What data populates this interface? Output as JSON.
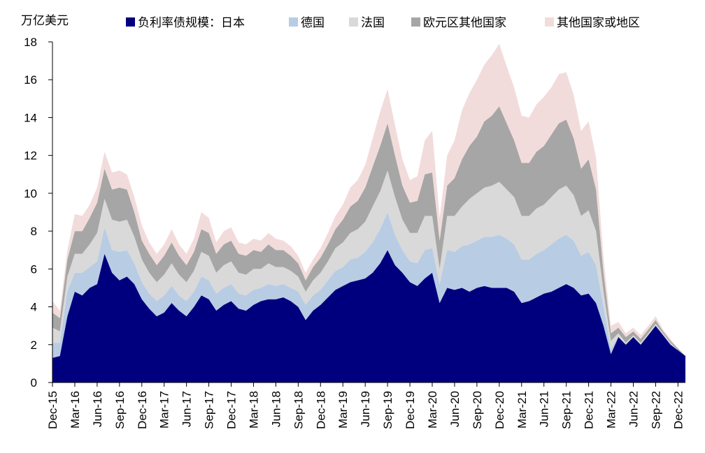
{
  "chart_data": {
    "type": "area",
    "stacked": true,
    "unit_label": "万亿美元",
    "ylim": [
      0,
      18
    ],
    "y_ticks": [
      "0",
      "2",
      "4",
      "6",
      "8",
      "10",
      "12",
      "14",
      "16",
      "18"
    ],
    "x_tick_labels": [
      "Dec-15",
      "Mar-16",
      "Jun-16",
      "Sep-16",
      "Dec-16",
      "Mar-17",
      "Jun-17",
      "Sep-17",
      "Dec-17",
      "Mar-18",
      "Jun-18",
      "Sep-18",
      "Dec-18",
      "Mar-19",
      "Jun-19",
      "Sep-19",
      "Dec-19",
      "Mar-20",
      "Jun-20",
      "Sep-20",
      "Dec-20",
      "Mar-21",
      "Jun-21",
      "Sep-21",
      "Dec-21",
      "Mar-22",
      "Jun-22",
      "Sep-22",
      "Dec-22"
    ],
    "legend_position": "top",
    "grid": false,
    "x": [
      "Dec-15",
      "Jan-16",
      "Feb-16",
      "Mar-16",
      "Apr-16",
      "May-16",
      "Jun-16",
      "Jul-16",
      "Aug-16",
      "Sep-16",
      "Oct-16",
      "Nov-16",
      "Dec-16",
      "Jan-17",
      "Feb-17",
      "Mar-17",
      "Apr-17",
      "May-17",
      "Jun-17",
      "Jul-17",
      "Aug-17",
      "Sep-17",
      "Oct-17",
      "Nov-17",
      "Dec-17",
      "Jan-18",
      "Feb-18",
      "Mar-18",
      "Apr-18",
      "May-18",
      "Jun-18",
      "Jul-18",
      "Aug-18",
      "Sep-18",
      "Oct-18",
      "Nov-18",
      "Dec-18",
      "Jan-19",
      "Feb-19",
      "Mar-19",
      "Apr-19",
      "May-19",
      "Jun-19",
      "Jul-19",
      "Aug-19",
      "Sep-19",
      "Oct-19",
      "Nov-19",
      "Dec-19",
      "Jan-20",
      "Feb-20",
      "Mar-20",
      "Apr-20",
      "May-20",
      "Jun-20",
      "Jul-20",
      "Aug-20",
      "Sep-20",
      "Oct-20",
      "Nov-20",
      "Dec-20",
      "Jan-21",
      "Feb-21",
      "Mar-21",
      "Apr-21",
      "May-21",
      "Jun-21",
      "Jul-21",
      "Aug-21",
      "Sep-21",
      "Oct-21",
      "Nov-21",
      "Dec-21",
      "Jan-22",
      "Feb-22",
      "Mar-22",
      "Apr-22",
      "May-22",
      "Jun-22",
      "Jul-22",
      "Aug-22",
      "Sep-22",
      "Oct-22",
      "Nov-22",
      "Dec-22",
      "Jan-23"
    ],
    "series": [
      {
        "name": "负利率债规模：日本",
        "color": "#00007F",
        "values": [
          1.3,
          1.4,
          3.5,
          4.8,
          4.6,
          5.0,
          5.2,
          6.8,
          5.8,
          5.4,
          5.6,
          5.2,
          4.4,
          3.9,
          3.5,
          3.7,
          4.2,
          3.8,
          3.5,
          4.0,
          4.6,
          4.4,
          3.8,
          4.1,
          4.3,
          3.9,
          3.8,
          4.1,
          4.3,
          4.4,
          4.4,
          4.5,
          4.3,
          4.0,
          3.3,
          3.8,
          4.1,
          4.5,
          4.9,
          5.1,
          5.3,
          5.4,
          5.5,
          5.8,
          6.3,
          7.0,
          6.2,
          5.8,
          5.3,
          5.1,
          5.5,
          5.8,
          4.2,
          5.0,
          4.9,
          5.0,
          4.8,
          5.0,
          5.1,
          5.0,
          5.0,
          5.0,
          4.8,
          4.2,
          4.3,
          4.5,
          4.7,
          4.8,
          5.0,
          5.2,
          5.0,
          4.6,
          4.7,
          4.2,
          3.0,
          1.5,
          2.4,
          2.0,
          2.4,
          2.0,
          2.5,
          3.0,
          2.5,
          2.0,
          1.7,
          1.4
        ],
        "labels_vals": null
      },
      {
        "name": "德国",
        "color": "#B8CCE4",
        "values": [
          0.8,
          0.7,
          1.3,
          1.0,
          1.2,
          1.1,
          1.2,
          1.4,
          1.2,
          1.5,
          1.4,
          1.1,
          0.9,
          0.8,
          0.8,
          0.9,
          0.9,
          0.8,
          0.8,
          0.8,
          1.0,
          1.0,
          0.9,
          0.9,
          0.9,
          0.8,
          0.8,
          0.8,
          0.7,
          0.8,
          0.7,
          0.7,
          0.7,
          0.8,
          0.8,
          0.8,
          0.8,
          0.9,
          1.0,
          1.0,
          1.2,
          1.2,
          1.4,
          1.6,
          1.8,
          2.0,
          1.6,
          1.2,
          1.1,
          1.2,
          1.5,
          1.3,
          1.0,
          2.0,
          2.0,
          2.2,
          2.5,
          2.5,
          2.6,
          2.7,
          2.8,
          2.6,
          2.5,
          2.3,
          2.2,
          2.3,
          2.3,
          2.5,
          2.6,
          2.6,
          2.5,
          2.1,
          2.2,
          2.0,
          1.0,
          0.3,
          0.0,
          0.0,
          0.0,
          0.0,
          0.0,
          0.0,
          0.0,
          0.0,
          0.0,
          0.0
        ],
        "labels_vals": null
      },
      {
        "name": "法国",
        "color": "#D9D9D9",
        "values": [
          0.8,
          0.6,
          0.8,
          1.0,
          1.0,
          1.2,
          1.5,
          1.5,
          1.6,
          1.6,
          1.6,
          1.4,
          1.2,
          1.1,
          1.0,
          1.1,
          1.2,
          1.1,
          1.0,
          1.1,
          1.3,
          1.3,
          1.1,
          1.2,
          1.2,
          1.1,
          1.1,
          1.1,
          1.0,
          1.1,
          1.0,
          0.9,
          0.9,
          0.8,
          0.7,
          0.8,
          0.9,
          1.0,
          1.2,
          1.3,
          1.4,
          1.5,
          1.6,
          1.9,
          2.0,
          2.2,
          2.0,
          1.6,
          1.5,
          1.6,
          1.8,
          1.7,
          0.8,
          1.8,
          1.9,
          2.1,
          2.4,
          2.5,
          2.6,
          2.7,
          2.8,
          2.6,
          2.5,
          2.3,
          2.3,
          2.4,
          2.4,
          2.5,
          2.6,
          2.6,
          2.4,
          2.1,
          2.2,
          1.8,
          0.8,
          0.4,
          0.2,
          0.1,
          0.1,
          0.1,
          0.1,
          0.1,
          0.1,
          0.1,
          0.0,
          0.0
        ],
        "labels_vals": null
      },
      {
        "name": "欧元区其他国家",
        "color": "#A6A6A6",
        "values": [
          0.8,
          0.7,
          0.9,
          1.2,
          1.2,
          1.4,
          1.6,
          1.6,
          1.6,
          1.8,
          1.6,
          1.3,
          1.0,
          1.0,
          0.9,
          1.0,
          1.1,
          1.0,
          0.9,
          1.0,
          1.2,
          1.2,
          1.0,
          1.1,
          1.1,
          1.0,
          1.0,
          1.0,
          0.9,
          1.0,
          0.9,
          0.9,
          0.8,
          0.7,
          0.6,
          0.7,
          0.8,
          0.9,
          1.0,
          1.2,
          1.4,
          1.5,
          1.8,
          2.1,
          2.4,
          2.5,
          2.2,
          1.8,
          1.6,
          1.7,
          2.2,
          2.3,
          1.5,
          1.6,
          2.0,
          2.5,
          2.8,
          3.0,
          3.5,
          3.7,
          4.0,
          3.5,
          3.0,
          2.8,
          2.8,
          3.0,
          3.1,
          3.3,
          3.5,
          3.5,
          3.0,
          2.5,
          2.7,
          2.2,
          1.0,
          0.4,
          0.3,
          0.3,
          0.2,
          0.2,
          0.2,
          0.2,
          0.1,
          0.1,
          0.1,
          0.0
        ],
        "labels_vals": null
      },
      {
        "name": "其他国家或地区",
        "color": "#F2DCDB",
        "values": [
          0.6,
          0.4,
          0.5,
          0.9,
          0.8,
          0.7,
          0.8,
          0.9,
          0.9,
          0.9,
          0.8,
          0.8,
          0.8,
          0.6,
          0.6,
          0.6,
          0.7,
          0.6,
          0.6,
          0.7,
          0.9,
          0.8,
          0.6,
          0.7,
          0.7,
          0.6,
          0.6,
          0.6,
          0.6,
          0.6,
          0.6,
          0.5,
          0.5,
          0.4,
          0.4,
          0.4,
          0.5,
          0.6,
          0.7,
          0.8,
          1.0,
          1.1,
          1.2,
          1.5,
          1.8,
          1.8,
          1.6,
          1.4,
          1.2,
          1.3,
          1.8,
          2.2,
          1.2,
          1.6,
          2.0,
          2.6,
          2.8,
          3.0,
          3.0,
          3.2,
          3.3,
          3.0,
          2.8,
          2.5,
          2.4,
          2.5,
          2.6,
          2.5,
          2.6,
          2.5,
          2.3,
          2.0,
          2.0,
          1.7,
          0.8,
          0.4,
          0.3,
          0.2,
          0.2,
          0.2,
          0.2,
          0.2,
          0.1,
          0.1,
          0.0,
          0.0
        ],
        "labels_vals": null
      }
    ]
  }
}
